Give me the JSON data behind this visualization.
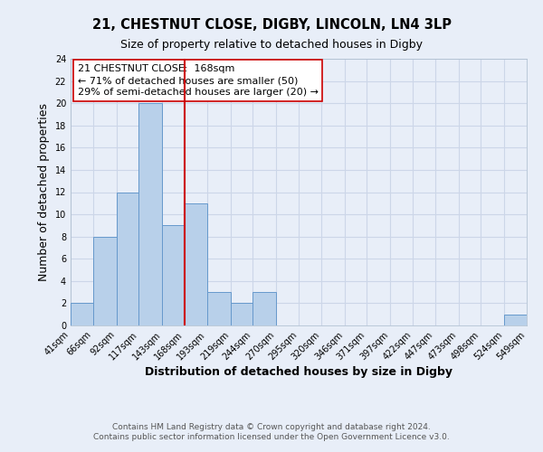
{
  "title": "21, CHESTNUT CLOSE, DIGBY, LINCOLN, LN4 3LP",
  "subtitle": "Size of property relative to detached houses in Digby",
  "xlabel": "Distribution of detached houses by size in Digby",
  "ylabel": "Number of detached properties",
  "bar_edges": [
    41,
    66,
    92,
    117,
    143,
    168,
    193,
    219,
    244,
    270,
    295,
    320,
    346,
    371,
    397,
    422,
    447,
    473,
    498,
    524,
    549
  ],
  "bar_heights": [
    2,
    8,
    12,
    20,
    9,
    11,
    3,
    2,
    3,
    0,
    0,
    0,
    0,
    0,
    0,
    0,
    0,
    0,
    0,
    1
  ],
  "bar_color": "#b8d0ea",
  "bar_edge_color": "#6699cc",
  "vline_x": 168,
  "vline_color": "#cc0000",
  "ylim": [
    0,
    24
  ],
  "xlim": [
    41,
    549
  ],
  "annotation_title": "21 CHESTNUT CLOSE:  168sqm",
  "annotation_line1": "← 71% of detached houses are smaller (50)",
  "annotation_line2": "29% of semi-detached houses are larger (20) →",
  "annotation_box_color": "#ffffff",
  "annotation_box_edge": "#cc0000",
  "footer1": "Contains HM Land Registry data © Crown copyright and database right 2024.",
  "footer2": "Contains public sector information licensed under the Open Government Licence v3.0.",
  "tick_labels": [
    "41sqm",
    "66sqm",
    "92sqm",
    "117sqm",
    "143sqm",
    "168sqm",
    "193sqm",
    "219sqm",
    "244sqm",
    "270sqm",
    "295sqm",
    "320sqm",
    "346sqm",
    "371sqm",
    "397sqm",
    "422sqm",
    "447sqm",
    "473sqm",
    "498sqm",
    "524sqm",
    "549sqm"
  ],
  "title_fontsize": 10.5,
  "subtitle_fontsize": 9,
  "axis_label_fontsize": 9,
  "tick_fontsize": 7,
  "annotation_fontsize": 8,
  "footer_fontsize": 6.5,
  "grid_color": "#ccd6e8",
  "background_color": "#e8eef8",
  "axes_background": "#e8eef8"
}
